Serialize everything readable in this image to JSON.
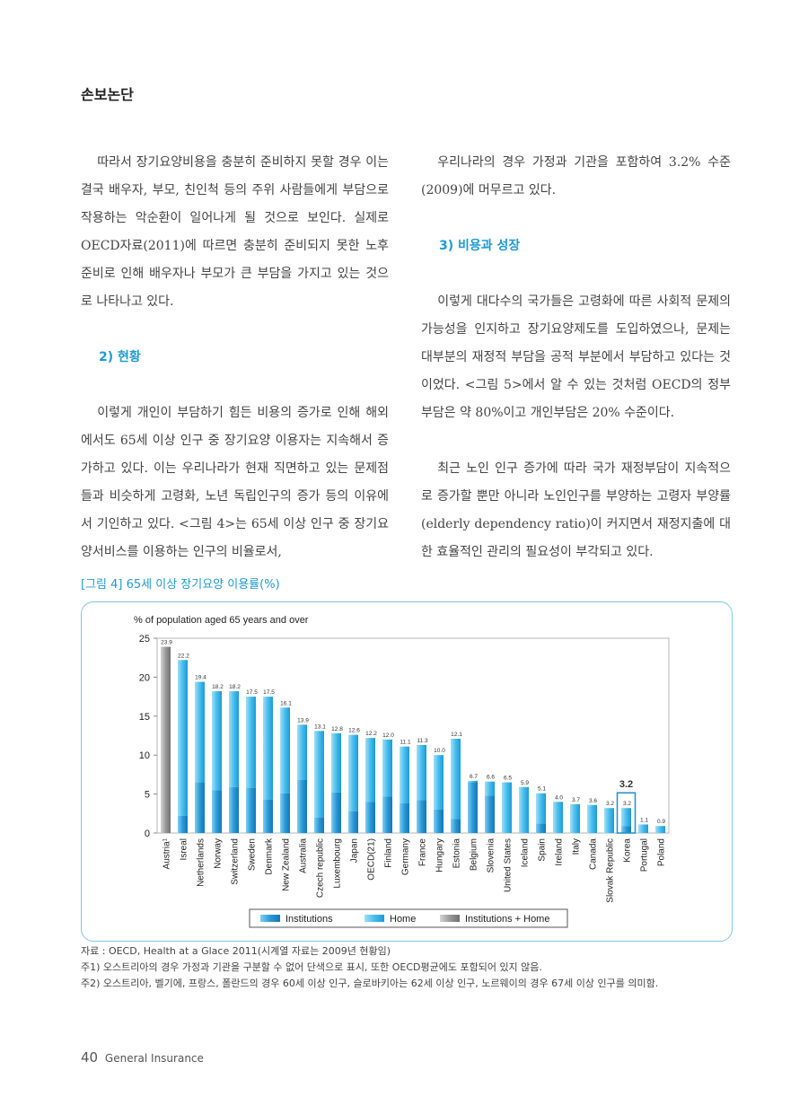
{
  "header": {
    "title": "손보논단"
  },
  "left_column": {
    "p1": "따라서 장기요양비용을 충분히 준비하지 못할 경우 이는 결국 배우자, 부모, 친인척 등의 주위 사람들에게 부담으로 작용하는 악순환이 일어나게 될 것으로 보인다. 실제로 OECD자료(2011)에 따르면 충분히 준비되지 못한 노후 준비로 인해 배우자나 부모가 큰 부담을 가지고 있는 것으로 나타나고 있다.",
    "h2": "2) 현황",
    "p2": "이렇게 개인이 부담하기 힘든 비용의 증가로 인해 해외에서도 65세 이상 인구 중 장기요양 이용자는 지속해서 증가하고 있다. 이는 우리나라가 현재 직면하고 있는 문제점들과 비슷하게 고령화, 노년 독립인구의 증가 등의 이유에서 기인하고 있다. <그림 4>는 65세 이상 인구 중 장기요양서비스를 이용하는 인구의 비율로서,"
  },
  "right_column": {
    "p1": "우리나라의 경우 가정과 기관을 포함하여 3.2% 수준(2009)에 머무르고 있다.",
    "h3": "3) 비용과 성장",
    "p2": "이렇게 대다수의 국가들은 고령화에 따른 사회적 문제의 가능성을 인지하고 장기요양제도를 도입하였으나, 문제는 대부분의 재정적 부담을 공적 부분에서 부담하고 있다는 것이었다. <그림 5>에서 알 수 있는 것처럼 OECD의 정부부담은 약 80%이고 개인부담은 20% 수준이다.",
    "p3": "최근 노인 인구 증가에 따라 국가 재정부담이 지속적으로 증가할 뿐만 아니라 노인인구를 부양하는 고령자 부양률(elderly dependency ratio)이 커지면서 재정지출에 대한 효율적인 관리의 필요성이 부각되고 있다."
  },
  "figure": {
    "title": "[그림 4] 65세 이상 장기요양 이용률(%)"
  },
  "chart_data": {
    "type": "bar",
    "ylabel": "% of population aged 65 years and over",
    "ylim": [
      0,
      25
    ],
    "yticks": [
      0,
      5,
      10,
      15,
      20,
      25
    ],
    "categories": [
      "Austria",
      "Isreal",
      "Netherlands",
      "Norway",
      "Switzerland",
      "Sweden",
      "Denmark",
      "New Zealand",
      "Australia",
      "Czech republic",
      "Luxembourg",
      "Japan",
      "OECD(21)",
      "Finland",
      "Germany",
      "France",
      "Hungary",
      "Estonia",
      "Belgium",
      "Slovenia",
      "United States",
      "Iceland",
      "Spain",
      "Ireland",
      "Italy",
      "Canada",
      "Slovak Republic",
      "Korea",
      "Portugal",
      "Poland"
    ],
    "category_superscripts": {
      "Austria": "1"
    },
    "totals": [
      23.9,
      22.2,
      19.4,
      18.2,
      18.2,
      17.5,
      17.5,
      16.1,
      13.9,
      13.1,
      12.8,
      12.6,
      12.2,
      12.0,
      11.1,
      11.3,
      10.0,
      12.1,
      6.7,
      6.6,
      6.5,
      5.9,
      5.1,
      4.0,
      3.7,
      3.6,
      3.2,
      3.2,
      1.1,
      0.9
    ],
    "total_labels": [
      "23.9",
      "22.2",
      "19.4",
      "18.2",
      "18.2",
      "17.5",
      "17.5",
      "16.1",
      "13.9",
      "13.1",
      "12.8",
      "12.6",
      "12.2",
      "12.0",
      "11.1",
      "11.3",
      "10.0",
      "12.1",
      "6.7",
      "6.6",
      "6.5",
      "5.9",
      "5.1",
      "4.0",
      "3.7",
      "3.6",
      "3.2",
      "3.2",
      "1.1",
      "0.9"
    ],
    "institutions": [
      null,
      2.2,
      6.5,
      5.5,
      5.9,
      5.8,
      4.3,
      5.1,
      6.8,
      2.0,
      5.2,
      2.8,
      4.0,
      4.7,
      3.8,
      4.2,
      3.0,
      1.8,
      6.5,
      4.8,
      0.0,
      0.0,
      1.2,
      0.0,
      0.0,
      0.0,
      0.0,
      0.9,
      0.0,
      0.0
    ],
    "highlight": "Korea",
    "highlight_label": "3.2",
    "legend": [
      "Institutions",
      "Home",
      "Institutions + Home"
    ],
    "legend_position": "bottom",
    "grid": false
  },
  "notes": {
    "source": "자료 : OECD, Health at a Glace 2011(시계열 자료는 2009년 현황임)",
    "note1": "주1) 오스트리아의 경우 가정과 기관을 구분할 수 없어 단색으로 표시, 또한 OECD평균에도 포함되어 있지 않음.",
    "note2": "주2) 오스트리아, 벨기에, 프랑스, 폴란드의 경우 60세 이상 인구, 슬로바키아는 62세 이상 인구, 노르웨이의 경우 67세 이상 인구를 의미함."
  },
  "footer": {
    "page_number": "40",
    "publication": "General Insurance"
  },
  "colors": {
    "accent": "#1d9bd6",
    "home": "#5cc4ee",
    "institutions": "#1f8fcf",
    "combined": "#8c8c8c",
    "highlight_box": "#1d8fcf"
  }
}
